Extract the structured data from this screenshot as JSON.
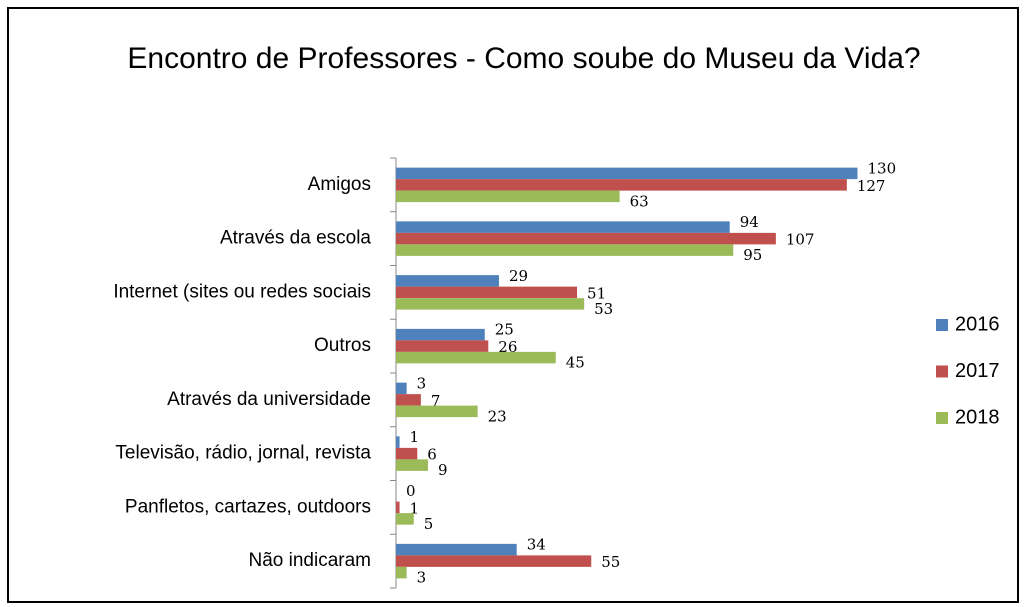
{
  "chart_data": {
    "type": "bar",
    "orientation": "horizontal",
    "title": "Encontro de Professores - Como soube do Museu da Vida?",
    "categories": [
      "Amigos",
      "Através da escola",
      "Internet (sites ou redes sociais",
      "Outros",
      "Através da universidade",
      "Televisão, rádio, jornal, revista",
      "Panfletos, cartazes, outdoors",
      "Não indicaram"
    ],
    "series": [
      {
        "name": "2016",
        "color": "#4f81bd",
        "values": [
          130,
          94,
          29,
          25,
          3,
          1,
          0,
          34
        ]
      },
      {
        "name": "2017",
        "color": "#c0504d",
        "values": [
          127,
          107,
          51,
          26,
          7,
          6,
          1,
          55
        ]
      },
      {
        "name": "2018",
        "color": "#9bbb59",
        "values": [
          63,
          95,
          53,
          45,
          23,
          9,
          5,
          3
        ]
      }
    ],
    "xlim": [
      0,
      140
    ],
    "legend": "right"
  }
}
